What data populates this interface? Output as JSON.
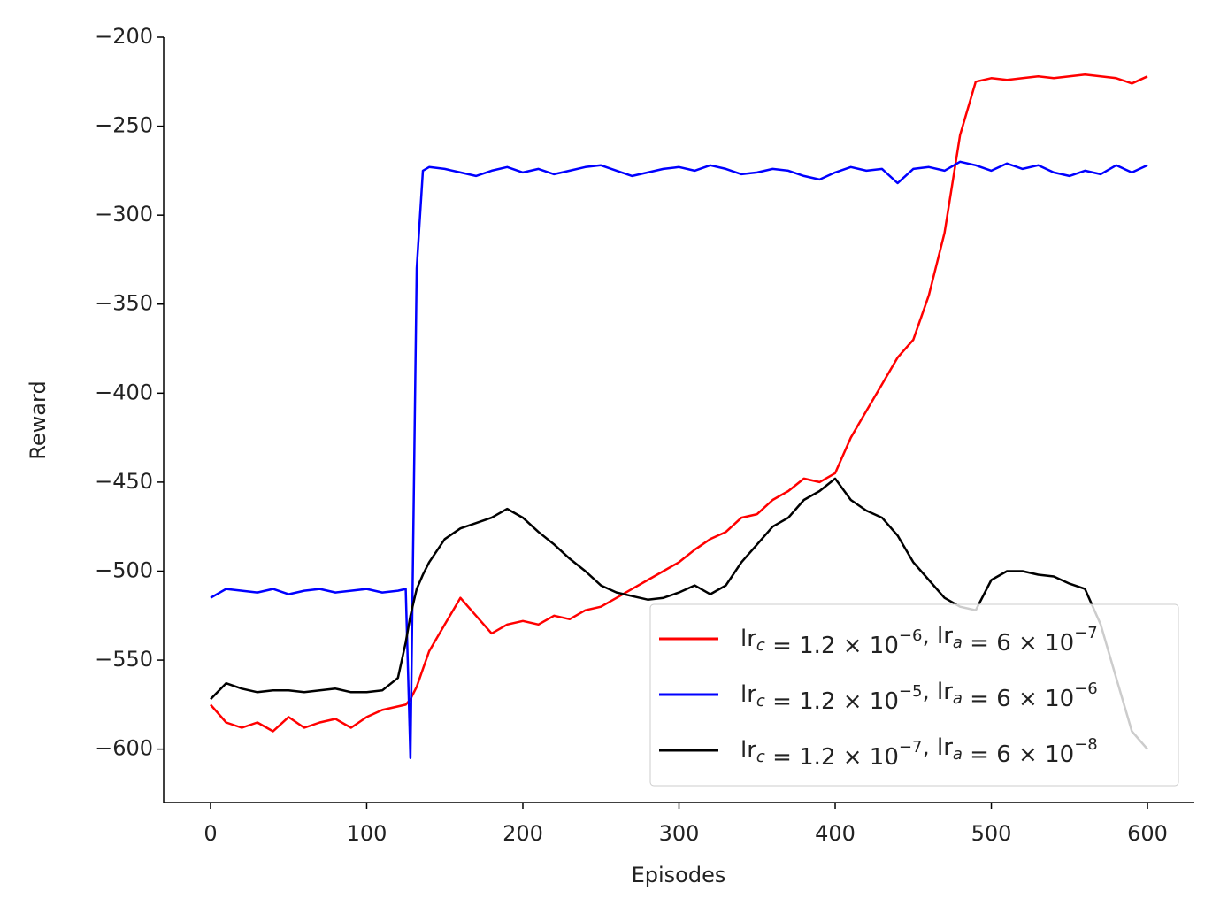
{
  "chart_data": {
    "type": "line",
    "xlabel": "Episodes",
    "ylabel": "Reward",
    "x": [
      0,
      10,
      20,
      30,
      40,
      50,
      60,
      70,
      80,
      90,
      100,
      110,
      120,
      125,
      128,
      132,
      136,
      140,
      150,
      160,
      170,
      180,
      190,
      200,
      210,
      220,
      230,
      240,
      250,
      260,
      270,
      280,
      290,
      300,
      310,
      320,
      330,
      340,
      350,
      360,
      370,
      380,
      390,
      400,
      410,
      420,
      430,
      440,
      450,
      460,
      470,
      480,
      490,
      500,
      510,
      520,
      530,
      540,
      550,
      560,
      570,
      580,
      590,
      600
    ],
    "series": [
      {
        "name": "lr_c = 1.2 × 10^{−6}, lr_a = 6 × 10^{−7}",
        "color": "#ff0000",
        "values": [
          -575,
          -585,
          -588,
          -585,
          -590,
          -582,
          -588,
          -585,
          -583,
          -588,
          -582,
          -578,
          -576,
          -575,
          -572,
          -565,
          -555,
          -545,
          -530,
          -515,
          -525,
          -535,
          -530,
          -528,
          -530,
          -525,
          -527,
          -522,
          -520,
          -515,
          -510,
          -505,
          -500,
          -495,
          -488,
          -482,
          -478,
          -470,
          -468,
          -460,
          -455,
          -448,
          -450,
          -445,
          -425,
          -410,
          -395,
          -380,
          -370,
          -345,
          -310,
          -255,
          -225,
          -223,
          -224,
          -223,
          -222,
          -223,
          -222,
          -221,
          -222,
          -223,
          -226,
          -222
        ]
      },
      {
        "name": "lr_c = 1.2 × 10^{−5}, lr_a = 6 × 10^{−6}",
        "color": "#0000ff",
        "values": [
          -515,
          -510,
          -511,
          -512,
          -510,
          -513,
          -511,
          -510,
          -512,
          -511,
          -510,
          -512,
          -511,
          -510,
          -605,
          -330,
          -275,
          -273,
          -274,
          -276,
          -278,
          -275,
          -273,
          -276,
          -274,
          -277,
          -275,
          -273,
          -272,
          -275,
          -278,
          -276,
          -274,
          -273,
          -275,
          -272,
          -274,
          -277,
          -276,
          -274,
          -275,
          -278,
          -280,
          -276,
          -273,
          -275,
          -274,
          -282,
          -274,
          -273,
          -275,
          -270,
          -272,
          -275,
          -271,
          -274,
          -272,
          -276,
          -278,
          -275,
          -277,
          -272,
          -276,
          -272
        ]
      },
      {
        "name": "lr_c = 1.2 × 10^{−7}, lr_a = 6 × 10^{−8}",
        "color": "#000000",
        "values": [
          -572,
          -563,
          -566,
          -568,
          -567,
          -567,
          -568,
          -567,
          -566,
          -568,
          -568,
          -567,
          -560,
          -540,
          -525,
          -510,
          -502,
          -495,
          -482,
          -476,
          -473,
          -470,
          -465,
          -470,
          -478,
          -485,
          -493,
          -500,
          -508,
          -512,
          -514,
          -516,
          -515,
          -512,
          -508,
          -513,
          -508,
          -495,
          -485,
          -475,
          -470,
          -460,
          -455,
          -448,
          -460,
          -466,
          -470,
          -480,
          -495,
          -505,
          -515,
          -520,
          -522,
          -505,
          -500,
          -500,
          -502,
          -503,
          -507,
          -510,
          -530,
          -560,
          -590,
          -600
        ]
      }
    ],
    "xlim": [
      -30,
      630
    ],
    "xticks": [
      0,
      100,
      200,
      300,
      400,
      500,
      600
    ],
    "ylim": [
      -630,
      -200
    ],
    "yticks": [
      {
        "value": -600,
        "label": "−600"
      },
      {
        "value": -550,
        "label": "−550"
      },
      {
        "value": -500,
        "label": "−500"
      },
      {
        "value": -450,
        "label": "−450"
      },
      {
        "value": -400,
        "label": "−400"
      },
      {
        "value": -350,
        "label": "−350"
      },
      {
        "value": -300,
        "label": "−300"
      },
      {
        "value": -250,
        "label": "−250"
      },
      {
        "value": -200,
        "label": "−200"
      }
    ],
    "grid": false,
    "legend": "lower right"
  }
}
